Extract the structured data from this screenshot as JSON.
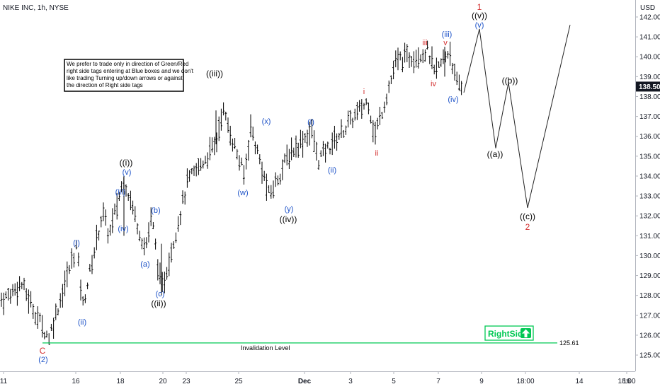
{
  "header": {
    "symbol": "NIKE INC, 1h, NYSE",
    "currency": "USD"
  },
  "note": {
    "lines": [
      "We prefer to trade only in direction of Green/Red",
      "right side tags entering at Blue boxes and we don't",
      "like trading Turning up/down arrows or against",
      "the direction of Right side tags"
    ]
  },
  "last_price": {
    "value": 138.5,
    "label": "138.50"
  },
  "invalidation": {
    "value": 125.61,
    "label": "125.61",
    "text": "Invalidation Level"
  },
  "rightside": {
    "label": "RightSide",
    "arrow": "up-arrow-icon",
    "color": "#00c853"
  },
  "colors": {
    "wave_blue": "#1e53c8",
    "wave_red": "#d32f2f",
    "wave_black": "#000000",
    "invalidation": "#00c853",
    "bars": "#000000"
  },
  "chart_data": {
    "type": "line",
    "title": "NIKE INC, 1h, NYSE",
    "ylabel": "USD",
    "ylim": [
      124.6,
      142.5
    ],
    "y_ticks": [
      "125.00",
      "126.00",
      "127.00",
      "128.00",
      "129.00",
      "130.00",
      "131.00",
      "132.00",
      "133.00",
      "134.00",
      "135.00",
      "136.00",
      "137.00",
      "138.00",
      "139.00",
      "140.00",
      "141.00",
      "142.00"
    ],
    "x_ticks": [
      "11",
      "16",
      "18",
      "20",
      "23",
      "25",
      "Dec",
      "3",
      "5",
      "7",
      "9",
      "18:00",
      "14",
      "16",
      "18:00"
    ],
    "series": [
      {
        "values": [
          {
            "x": "Nov 11",
            "y": 127.8
          },
          {
            "x": "Nov 12",
            "y": 128.6
          },
          {
            "x": "Nov 13",
            "y": 126.4
          },
          {
            "x": "Nov 13",
            "y": 125.9
          },
          {
            "x": "Nov 16",
            "y": 130.5
          },
          {
            "x": "Nov 16",
            "y": 127.5
          },
          {
            "x": "Nov 17",
            "y": 132.2
          },
          {
            "x": "Nov 17",
            "y": 131.0
          },
          {
            "x": "Nov 18",
            "y": 133.9
          },
          {
            "x": "Nov 19",
            "y": 130.3
          },
          {
            "x": "Nov 19",
            "y": 132.0
          },
          {
            "x": "Nov 20",
            "y": 128.2
          },
          {
            "x": "Nov 23",
            "y": 133.7
          },
          {
            "x": "Nov 24",
            "y": 135.6
          },
          {
            "x": "Nov 24",
            "y": 137.4
          },
          {
            "x": "Nov 25",
            "y": 134.0
          },
          {
            "x": "Nov 25",
            "y": 136.5
          },
          {
            "x": "Nov 27",
            "y": 133.0
          },
          {
            "x": "Dec 1",
            "y": 135.1
          },
          {
            "x": "Dec 2",
            "y": 136.3
          },
          {
            "x": "Dec 2",
            "y": 134.8
          },
          {
            "x": "Dec 4",
            "y": 137.8
          },
          {
            "x": "Dec 4",
            "y": 136.0
          },
          {
            "x": "Dec 7",
            "y": 139.8
          },
          {
            "x": "Dec 8",
            "y": 140.3
          },
          {
            "x": "Dec 8",
            "y": 139.1
          },
          {
            "x": "Dec 9",
            "y": 140.4
          },
          {
            "x": "Dec 9",
            "y": 138.6
          },
          {
            "x": "Dec 9",
            "y": 138.5
          }
        ]
      },
      {
        "values": [
          {
            "x": "Dec 9",
            "y": 138.2
          },
          {
            "x": "Dec 10 18:00",
            "y": 141.4
          },
          {
            "x": "Dec 11",
            "y": 135.4
          },
          {
            "x": "Dec 13",
            "y": 138.7
          },
          {
            "x": "Dec 14",
            "y": 132.4
          },
          {
            "x": "Dec 16",
            "y": 141.6
          }
        ]
      }
    ],
    "wave_labels": [
      {
        "text": "C",
        "x": "Nov 13",
        "y": 125.5,
        "color": "red"
      },
      {
        "text": "(2)",
        "x": "Nov 13",
        "y": 125.0,
        "color": "blue"
      },
      {
        "text": "(i)",
        "x": "Nov 16",
        "y": 130.8,
        "color": "blue"
      },
      {
        "text": "(ii)",
        "x": "Nov 16",
        "y": 126.9,
        "color": "blue"
      },
      {
        "text": "(iii)",
        "x": "Nov 17",
        "y": 132.9,
        "color": "blue"
      },
      {
        "text": "(iv)",
        "x": "Nov 18",
        "y": 131.0,
        "color": "blue"
      },
      {
        "text": "(v)",
        "x": "Nov 18",
        "y": 134.1,
        "color": "blue"
      },
      {
        "text": "((i))",
        "x": "Nov 18",
        "y": 134.6,
        "color": "black"
      },
      {
        "text": "(a)",
        "x": "Nov 19",
        "y": 129.7,
        "color": "blue"
      },
      {
        "text": "(b)",
        "x": "Nov 19",
        "y": 132.0,
        "color": "blue"
      },
      {
        "text": "(c)",
        "x": "Nov 20",
        "y": 128.4,
        "color": "blue"
      },
      {
        "text": "((ii))",
        "x": "Nov 20",
        "y": 127.9,
        "color": "black"
      },
      {
        "text": "((iii))",
        "x": "Nov 24",
        "y": 138.7,
        "color": "black"
      },
      {
        "text": "(w)",
        "x": "Nov 25",
        "y": 132.9,
        "color": "blue"
      },
      {
        "text": "(x)",
        "x": "Nov 25",
        "y": 136.8,
        "color": "blue"
      },
      {
        "text": "(y)",
        "x": "Dec 1",
        "y": 132.5,
        "color": "blue"
      },
      {
        "text": "((iv))",
        "x": "Dec 1",
        "y": 131.9,
        "color": "black"
      },
      {
        "text": "(i)",
        "x": "Dec 2",
        "y": 136.7,
        "color": "blue"
      },
      {
        "text": "(ii)",
        "x": "Dec 3",
        "y": 133.9,
        "color": "blue"
      },
      {
        "text": "i",
        "x": "Dec 4",
        "y": 138.2,
        "color": "red"
      },
      {
        "text": "ii",
        "x": "Dec 4",
        "y": 134.9,
        "color": "red"
      },
      {
        "text": "iii",
        "x": "Dec 8",
        "y": 140.4,
        "color": "red"
      },
      {
        "text": "iv",
        "x": "Dec 8",
        "y": 138.7,
        "color": "red"
      },
      {
        "text": "(iii)",
        "x": "Dec 9",
        "y": 140.9,
        "color": "blue"
      },
      {
        "text": "v",
        "x": "Dec 9",
        "y": 140.4,
        "color": "red"
      },
      {
        "text": "(iv)",
        "x": "Dec 9",
        "y": 137.9,
        "color": "blue"
      },
      {
        "text": "1",
        "x": "Dec 10 18:00",
        "y": 142.4,
        "color": "red"
      },
      {
        "text": "((v))",
        "x": "Dec 10 18:00",
        "y": 142.0,
        "color": "black"
      },
      {
        "text": "(v)",
        "x": "Dec 10 18:00",
        "y": 141.5,
        "color": "blue"
      },
      {
        "text": "((a))",
        "x": "Dec 11",
        "y": 134.9,
        "color": "black"
      },
      {
        "text": "((b))",
        "x": "Dec 13",
        "y": 139.0,
        "color": "black"
      },
      {
        "text": "((c))",
        "x": "Dec 14",
        "y": 131.7,
        "color": "black"
      },
      {
        "text": "2",
        "x": "Dec 14",
        "y": 131.2,
        "color": "red"
      }
    ],
    "grid": false,
    "legend": "none"
  }
}
